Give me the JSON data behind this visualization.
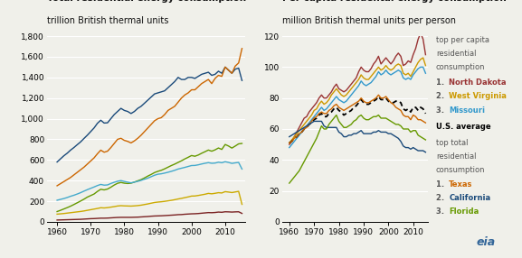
{
  "left_title_bold": "Total residential energy consumption",
  "left_title_sub": "trillion British thermal units",
  "right_title_bold": "Per capita residental energy consumption",
  "right_title_sub": "million British thermal units per person",
  "years": [
    1960,
    1961,
    1962,
    1963,
    1964,
    1965,
    1966,
    1967,
    1968,
    1969,
    1970,
    1971,
    1972,
    1973,
    1974,
    1975,
    1976,
    1977,
    1978,
    1979,
    1980,
    1981,
    1982,
    1983,
    1984,
    1985,
    1986,
    1987,
    1988,
    1989,
    1990,
    1991,
    1992,
    1993,
    1994,
    1995,
    1996,
    1997,
    1998,
    1999,
    2000,
    2001,
    2002,
    2003,
    2004,
    2005,
    2006,
    2007,
    2008,
    2009,
    2010,
    2011,
    2012,
    2013,
    2014,
    2015
  ],
  "left_california": [
    580,
    610,
    640,
    665,
    695,
    720,
    748,
    775,
    808,
    840,
    875,
    910,
    955,
    985,
    958,
    960,
    1000,
    1040,
    1070,
    1100,
    1080,
    1070,
    1050,
    1070,
    1100,
    1120,
    1150,
    1180,
    1210,
    1240,
    1250,
    1260,
    1270,
    1300,
    1330,
    1360,
    1400,
    1380,
    1380,
    1400,
    1400,
    1390,
    1410,
    1430,
    1440,
    1450,
    1420,
    1430,
    1460,
    1440,
    1500,
    1470,
    1440,
    1480,
    1490,
    1370
  ],
  "left_texas": [
    350,
    370,
    390,
    410,
    430,
    455,
    480,
    505,
    530,
    560,
    590,
    620,
    660,
    695,
    675,
    685,
    720,
    760,
    800,
    810,
    790,
    780,
    765,
    785,
    810,
    840,
    875,
    910,
    945,
    980,
    1000,
    1010,
    1040,
    1080,
    1100,
    1120,
    1160,
    1200,
    1230,
    1250,
    1280,
    1280,
    1310,
    1340,
    1360,
    1380,
    1340,
    1390,
    1420,
    1410,
    1500,
    1470,
    1440,
    1510,
    1540,
    1680
  ],
  "left_florida": [
    100,
    112,
    125,
    138,
    152,
    168,
    185,
    202,
    220,
    240,
    255,
    270,
    295,
    316,
    310,
    318,
    336,
    357,
    374,
    382,
    375,
    372,
    375,
    386,
    398,
    410,
    426,
    444,
    460,
    478,
    490,
    500,
    514,
    530,
    546,
    560,
    576,
    592,
    610,
    626,
    643,
    636,
    648,
    665,
    680,
    696,
    685,
    698,
    716,
    702,
    750,
    735,
    715,
    735,
    756,
    760
  ],
  "left_lightblue": [
    210,
    218,
    226,
    236,
    248,
    258,
    270,
    283,
    298,
    312,
    325,
    338,
    352,
    363,
    356,
    358,
    372,
    384,
    394,
    400,
    392,
    385,
    378,
    385,
    393,
    402,
    413,
    424,
    438,
    452,
    462,
    466,
    473,
    481,
    490,
    500,
    512,
    520,
    528,
    537,
    546,
    547,
    553,
    561,
    568,
    574,
    568,
    570,
    578,
    573,
    583,
    576,
    567,
    572,
    576,
    512
  ],
  "left_yellow": [
    75,
    78,
    81,
    85,
    89,
    93,
    97,
    101,
    106,
    112,
    118,
    124,
    130,
    137,
    135,
    138,
    143,
    148,
    154,
    157,
    155,
    154,
    153,
    155,
    158,
    162,
    168,
    174,
    181,
    188,
    192,
    195,
    199,
    204,
    209,
    215,
    222,
    228,
    235,
    242,
    250,
    251,
    256,
    262,
    268,
    276,
    272,
    277,
    283,
    280,
    293,
    289,
    284,
    290,
    296,
    170
  ],
  "left_darkred": [
    18,
    19,
    20,
    21,
    22,
    23,
    24,
    25,
    27,
    29,
    31,
    32,
    34,
    36,
    36,
    37,
    39,
    41,
    43,
    44,
    44,
    44,
    44,
    45,
    46,
    48,
    50,
    52,
    55,
    57,
    58,
    59,
    61,
    63,
    65,
    67,
    70,
    71,
    74,
    76,
    78,
    79,
    81,
    84,
    87,
    90,
    89,
    91,
    95,
    93,
    98,
    97,
    95,
    97,
    98,
    82
  ],
  "right_northdakota": [
    50,
    52,
    55,
    58,
    61,
    64,
    67,
    68,
    71,
    73,
    75,
    77,
    80,
    82,
    80,
    80,
    82,
    84,
    87,
    89,
    86,
    85,
    84,
    85,
    87,
    89,
    91,
    93,
    97,
    100,
    98,
    97,
    97,
    99,
    102,
    104,
    107,
    102,
    104,
    106,
    104,
    102,
    104,
    107,
    109,
    107,
    101,
    102,
    104,
    103,
    108,
    112,
    118,
    122,
    118,
    108
  ],
  "right_westvirginia": [
    51,
    53,
    55,
    57,
    59,
    61,
    63,
    65,
    67,
    69,
    72,
    73,
    76,
    78,
    76,
    77,
    79,
    82,
    84,
    86,
    84,
    82,
    81,
    82,
    84,
    86,
    88,
    90,
    92,
    95,
    93,
    92,
    92,
    94,
    96,
    98,
    100,
    98,
    99,
    101,
    99,
    98,
    99,
    101,
    102,
    101,
    96,
    95,
    96,
    94,
    97,
    100,
    103,
    105,
    106,
    101
  ],
  "right_missouri": [
    48,
    50,
    52,
    54,
    56,
    58,
    60,
    62,
    64,
    66,
    68,
    70,
    72,
    74,
    72,
    73,
    75,
    77,
    79,
    81,
    79,
    78,
    77,
    78,
    80,
    82,
    84,
    86,
    88,
    91,
    89,
    88,
    89,
    90,
    92,
    94,
    97,
    95,
    96,
    98,
    96,
    95,
    96,
    97,
    98,
    97,
    93,
    92,
    93,
    92,
    95,
    97,
    99,
    100,
    100,
    96
  ],
  "right_us_average": [
    51,
    52,
    54,
    55,
    57,
    58,
    60,
    61,
    63,
    64,
    66,
    67,
    69,
    70,
    68,
    68,
    70,
    71,
    73,
    74,
    72,
    71,
    69,
    70,
    71,
    72,
    74,
    75,
    77,
    79,
    77,
    76,
    76,
    77,
    78,
    79,
    81,
    79,
    79,
    80,
    78,
    77,
    77,
    78,
    78,
    77,
    73,
    72,
    73,
    71,
    74,
    74,
    72,
    74,
    73,
    70
  ],
  "right_texas_pc": [
    51,
    52,
    54,
    55,
    57,
    58,
    60,
    61,
    63,
    65,
    67,
    68,
    70,
    71,
    70,
    70,
    72,
    73,
    75,
    76,
    74,
    73,
    72,
    73,
    74,
    75,
    76,
    77,
    78,
    80,
    78,
    77,
    77,
    78,
    79,
    80,
    82,
    80,
    80,
    81,
    79,
    77,
    76,
    74,
    73,
    72,
    69,
    68,
    68,
    66,
    69,
    68,
    66,
    66,
    65,
    64
  ],
  "right_california_pc": [
    55,
    56,
    57,
    58,
    59,
    60,
    61,
    62,
    63,
    64,
    65,
    65,
    65,
    65,
    62,
    61,
    61,
    61,
    61,
    61,
    58,
    57,
    55,
    55,
    56,
    56,
    57,
    57,
    58,
    59,
    57,
    57,
    57,
    57,
    58,
    58,
    59,
    58,
    58,
    58,
    57,
    57,
    56,
    55,
    54,
    52,
    49,
    48,
    48,
    47,
    48,
    47,
    46,
    46,
    46,
    45
  ],
  "right_florida_pc": [
    25,
    27,
    29,
    31,
    33,
    36,
    39,
    42,
    45,
    48,
    51,
    54,
    58,
    62,
    60,
    60,
    63,
    65,
    67,
    69,
    65,
    63,
    61,
    61,
    62,
    63,
    65,
    66,
    68,
    69,
    67,
    66,
    66,
    67,
    68,
    68,
    69,
    67,
    67,
    67,
    66,
    65,
    64,
    63,
    63,
    62,
    60,
    60,
    60,
    58,
    59,
    59,
    56,
    55,
    54,
    53
  ],
  "left_ylim": [
    0,
    1800
  ],
  "left_yticks": [
    0,
    200,
    400,
    600,
    800,
    1000,
    1200,
    1400,
    1600,
    1800
  ],
  "right_ylim": [
    0,
    120
  ],
  "right_yticks": [
    0,
    20,
    40,
    60,
    80,
    100,
    120
  ],
  "color_texas": "#cc6600",
  "color_california": "#1a4a7a",
  "color_florida": "#669900",
  "color_northdakota": "#993333",
  "color_westvirginia": "#cc9900",
  "color_missouri": "#3399cc",
  "color_us_average": "#000000",
  "color_lightblue": "#44aacc",
  "color_yellow": "#ccaa00",
  "color_darkred": "#7a2222",
  "bg_color": "#f0f0ea"
}
